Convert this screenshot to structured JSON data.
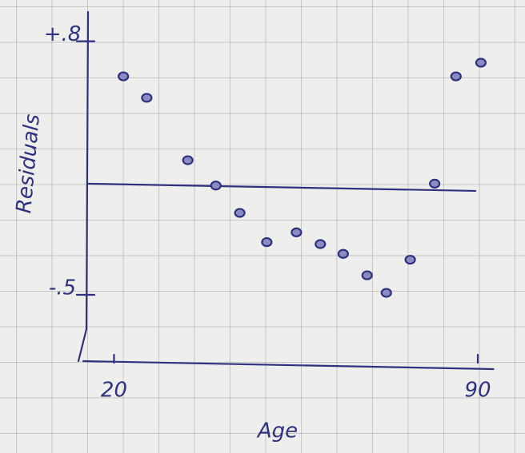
{
  "chart_data": {
    "type": "scatter",
    "x_label": "Age",
    "y_label": "Residuals",
    "color": "#2e3180",
    "x": [
      21.8,
      26.3,
      34.2,
      39.6,
      44.2,
      49.4,
      55.1,
      59.7,
      64.1,
      68.7,
      72.4,
      77.0,
      81.7,
      85.8,
      90.6
    ],
    "values": [
      0.62,
      0.51,
      0.19,
      0.06,
      -0.08,
      -0.23,
      -0.18,
      -0.24,
      -0.29,
      -0.4,
      -0.49,
      -0.32,
      0.07,
      0.62,
      0.69
    ],
    "xlim": [
      15,
      93
    ],
    "ylim": [
      -0.84,
      0.95
    ],
    "xticks": [
      20,
      90
    ],
    "yticks": [
      {
        "value": 0.8,
        "label": "+.8"
      },
      {
        "value": -0.5,
        "label": "-.5"
      }
    ],
    "hline": 0
  }
}
